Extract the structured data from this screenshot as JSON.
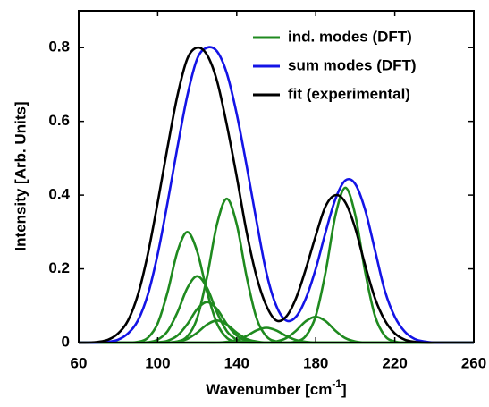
{
  "chart_data": {
    "type": "line",
    "xlabel": "Wavenumber [cm",
    "xlabel_sup": "-1",
    "xlabel_end": "]",
    "ylabel": "Intensity [Arb. Units]",
    "x": [
      60,
      65,
      70,
      75,
      80,
      85,
      90,
      95,
      100,
      105,
      110,
      115,
      120,
      125,
      130,
      135,
      140,
      145,
      150,
      155,
      160,
      165,
      170,
      175,
      180,
      185,
      190,
      195,
      200,
      205,
      210,
      215,
      220,
      225,
      230,
      235,
      240,
      245,
      250,
      255,
      260
    ],
    "xlim": [
      60,
      260
    ],
    "xticks": [
      60,
      100,
      140,
      180,
      220,
      260
    ],
    "ylim": [
      0,
      0.9
    ],
    "yticks": [
      0,
      0.2,
      0.4,
      0.6,
      0.8
    ],
    "legend": "upper right",
    "series": [
      {
        "name": "ind. modes (DFT)",
        "color": "#1f8a1f",
        "values": [
          [
            0,
            0,
            0,
            0,
            0,
            0,
            0.002,
            0.013,
            0.052,
            0.137,
            0.247,
            0.3,
            0.247,
            0.137,
            0.052,
            0.013,
            0.002,
            0,
            0,
            0,
            0,
            0,
            0,
            0,
            0,
            0,
            0,
            0,
            0,
            0,
            0,
            0,
            0,
            0,
            0,
            0,
            0,
            0,
            0,
            0,
            0
          ],
          [
            0,
            0,
            0,
            0,
            0,
            0,
            0,
            0.001,
            0.008,
            0.031,
            0.082,
            0.148,
            0.18,
            0.148,
            0.082,
            0.031,
            0.008,
            0.001,
            0,
            0,
            0,
            0,
            0,
            0,
            0,
            0,
            0,
            0,
            0,
            0,
            0,
            0,
            0,
            0,
            0,
            0,
            0,
            0,
            0,
            0,
            0
          ],
          [
            0,
            0,
            0,
            0,
            0,
            0,
            0,
            0,
            0.001,
            0.005,
            0.019,
            0.05,
            0.091,
            0.11,
            0.091,
            0.05,
            0.019,
            0.005,
            0.001,
            0,
            0,
            0,
            0,
            0,
            0,
            0,
            0,
            0,
            0,
            0,
            0,
            0,
            0,
            0,
            0,
            0,
            0,
            0,
            0,
            0,
            0
          ],
          [
            0,
            0,
            0,
            0,
            0,
            0,
            0,
            0,
            0,
            0,
            0.003,
            0.01,
            0.027,
            0.049,
            0.06,
            0.049,
            0.027,
            0.01,
            0.003,
            0,
            0,
            0,
            0,
            0,
            0,
            0,
            0,
            0,
            0,
            0,
            0,
            0,
            0,
            0,
            0,
            0,
            0,
            0,
            0,
            0,
            0
          ],
          [
            0,
            0,
            0,
            0,
            0,
            0,
            0,
            0,
            0,
            0,
            0.003,
            0.017,
            0.067,
            0.179,
            0.321,
            0.39,
            0.321,
            0.179,
            0.067,
            0.017,
            0.003,
            0,
            0,
            0,
            0,
            0,
            0,
            0,
            0,
            0,
            0,
            0,
            0,
            0,
            0,
            0,
            0,
            0,
            0,
            0,
            0
          ],
          [
            0,
            0,
            0,
            0,
            0,
            0,
            0,
            0,
            0,
            0,
            0,
            0,
            0,
            0,
            0,
            0.002,
            0.007,
            0.018,
            0.033,
            0.04,
            0.033,
            0.018,
            0.007,
            0.002,
            0,
            0,
            0,
            0,
            0,
            0,
            0,
            0,
            0,
            0,
            0,
            0,
            0,
            0,
            0,
            0,
            0
          ],
          [
            0,
            0,
            0,
            0,
            0,
            0,
            0,
            0,
            0,
            0,
            0,
            0,
            0,
            0,
            0,
            0,
            0,
            0,
            0,
            0,
            0.003,
            0.012,
            0.032,
            0.058,
            0.07,
            0.058,
            0.032,
            0.012,
            0.003,
            0,
            0,
            0,
            0,
            0,
            0,
            0,
            0,
            0,
            0,
            0,
            0
          ],
          [
            0,
            0,
            0,
            0,
            0,
            0,
            0,
            0,
            0,
            0,
            0,
            0,
            0,
            0,
            0,
            0,
            0,
            0,
            0,
            0,
            0,
            0,
            0.003,
            0.018,
            0.072,
            0.192,
            0.346,
            0.42,
            0.346,
            0.192,
            0.072,
            0.018,
            0.003,
            0,
            0,
            0,
            0,
            0,
            0,
            0,
            0
          ]
        ]
      },
      {
        "name": "sum modes (DFT)",
        "color": "#1414e6",
        "values": [
          0,
          0,
          0,
          0.002,
          0.008,
          0.025,
          0.06,
          0.13,
          0.24,
          0.38,
          0.53,
          0.67,
          0.77,
          0.8,
          0.79,
          0.73,
          0.62,
          0.48,
          0.33,
          0.19,
          0.1,
          0.06,
          0.07,
          0.12,
          0.2,
          0.3,
          0.39,
          0.44,
          0.43,
          0.36,
          0.25,
          0.14,
          0.07,
          0.03,
          0.01,
          0.003,
          0,
          0,
          0,
          0,
          0
        ]
      },
      {
        "name": "fit (experimental)",
        "color": "#000000",
        "values": [
          0,
          0,
          0.002,
          0.008,
          0.025,
          0.06,
          0.13,
          0.24,
          0.38,
          0.53,
          0.67,
          0.77,
          0.8,
          0.78,
          0.71,
          0.59,
          0.45,
          0.3,
          0.18,
          0.1,
          0.06,
          0.07,
          0.12,
          0.2,
          0.29,
          0.37,
          0.4,
          0.38,
          0.31,
          0.21,
          0.12,
          0.06,
          0.025,
          0.008,
          0.002,
          0,
          0,
          0,
          0,
          0,
          0
        ]
      }
    ]
  }
}
